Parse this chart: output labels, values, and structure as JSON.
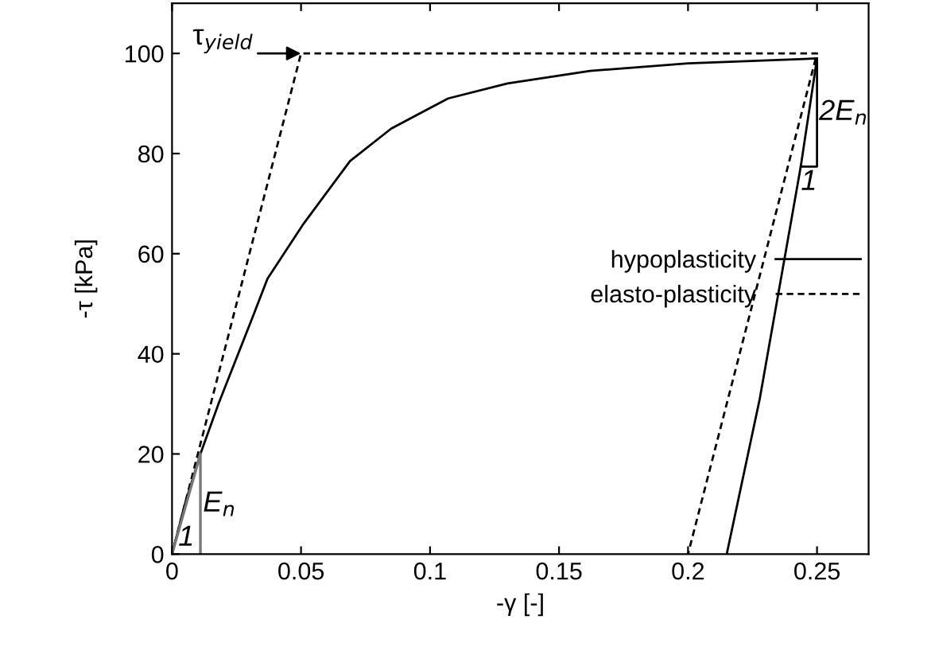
{
  "chart_data": {
    "type": "line",
    "xlabel": "-γ [-]",
    "ylabel": "-τ [kPa]",
    "xlim": [
      0,
      0.27
    ],
    "ylim": [
      0,
      110
    ],
    "xticks": [
      {
        "value": 0,
        "label": "0"
      },
      0.05,
      0.1,
      0.15,
      0.2,
      0.25
    ],
    "yticks": [
      0,
      20,
      40,
      60,
      80,
      100
    ],
    "series": [
      {
        "name": "hypoplasticity",
        "color": "#000000",
        "line_style": "solid",
        "x": [
          0,
          0.005,
          0.011,
          0.018,
          0.031,
          0.037,
          0.051,
          0.069,
          0.085,
          0.107,
          0.13,
          0.162,
          0.2,
          0.25,
          0.2437,
          0.2278,
          0.215
        ],
        "values": [
          0,
          10,
          20,
          30,
          47,
          55,
          66,
          78.5,
          85,
          91,
          94,
          96.5,
          98,
          99,
          77.4,
          31,
          0
        ]
      },
      {
        "name": "elasto-plasticity",
        "color": "#000000",
        "line_style": "dashed",
        "x": [
          0,
          0.05,
          0.25,
          0.2
        ],
        "values": [
          0,
          100,
          100,
          0
        ]
      }
    ],
    "legend": "right",
    "grid": false,
    "marker": "none",
    "annotations": [
      {
        "text": "τ$_{yield}$",
        "x": 0.05,
        "y": 100
      },
      "E$_{n}$",
      "1",
      "2E$_{n}$",
      {
        "text": "1",
        "x": 0.2437,
        "y": 77.4
      }
    ]
  }
}
